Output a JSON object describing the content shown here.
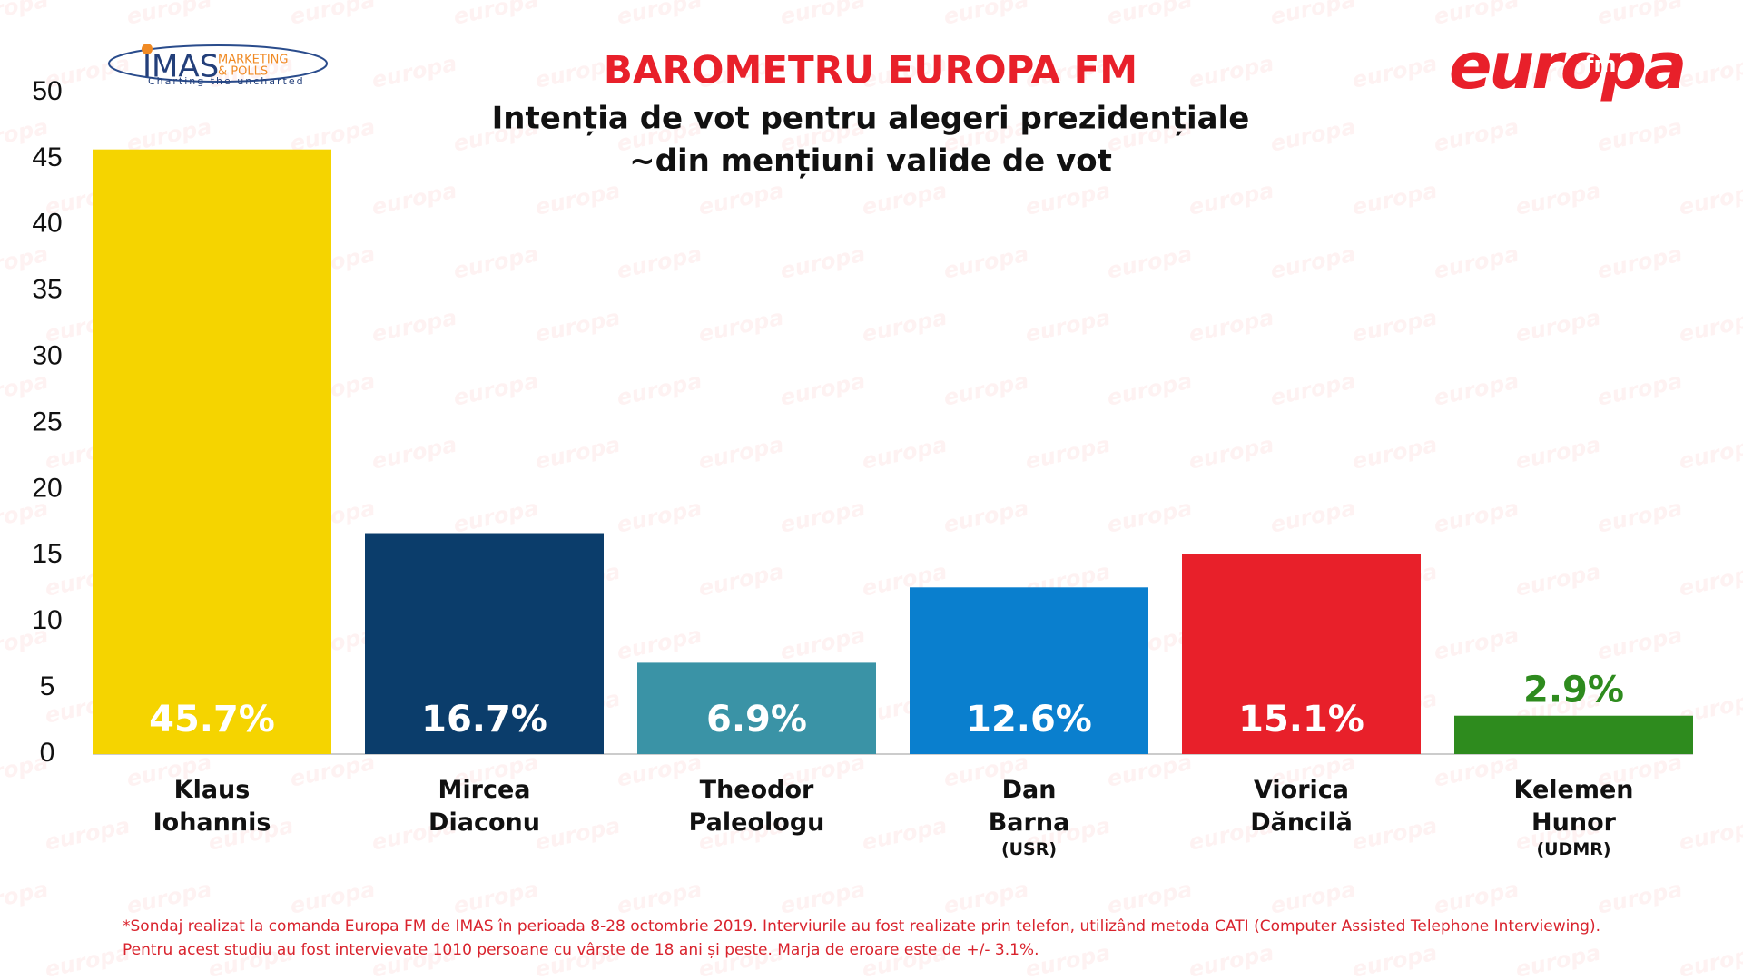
{
  "chart_data": {
    "type": "bar",
    "title": "BAROMETRU EUROPA FM",
    "subtitle": [
      "Intenția de vot pentru alegeri prezidențiale",
      "~din mențiuni valide de vot"
    ],
    "categories": [
      "Klaus Iohannis",
      "Mircea Diaconu",
      "Theodor Paleologu",
      "Dan Barna",
      "Viorica Dăncilă",
      "Kelemen Hunor"
    ],
    "parties": [
      null,
      null,
      null,
      "(USR)",
      null,
      "(UDMR)"
    ],
    "values": [
      45.7,
      16.7,
      6.9,
      12.6,
      15.1,
      2.9
    ],
    "value_labels": [
      "45.7%",
      "16.7%",
      "6.9%",
      "12.6%",
      "15.1%",
      "2.9%"
    ],
    "colors": [
      "#f5d400",
      "#0b3d6b",
      "#3a93a6",
      "#0a7fce",
      "#e8202a",
      "#2e8b1e"
    ],
    "ylim": [
      0,
      50
    ],
    "yticks": [
      0,
      5,
      10,
      15,
      20,
      25,
      30,
      35,
      40,
      45,
      50
    ],
    "footnote": [
      "*Sondaj realizat la comanda Europa FM de IMAS în perioada 8-28 octombrie 2019. Interviurile au fost realizate prin telefon, utilizând metoda CATI (Computer Assisted Telephone Interviewing).",
      "Pentru acest studiu au fost intervievate 1010 persoane cu vârste de 18 ani și peste. Marja de eroare este de +/- 3.1%."
    ]
  },
  "logos": {
    "imas": "IMAS",
    "imas_tag1": "MARKETING",
    "imas_tag2": "& POLLS",
    "imas_slogan": "Charting the uncharted",
    "europa": "europa",
    "fm": "fm"
  },
  "watermark": "europa"
}
